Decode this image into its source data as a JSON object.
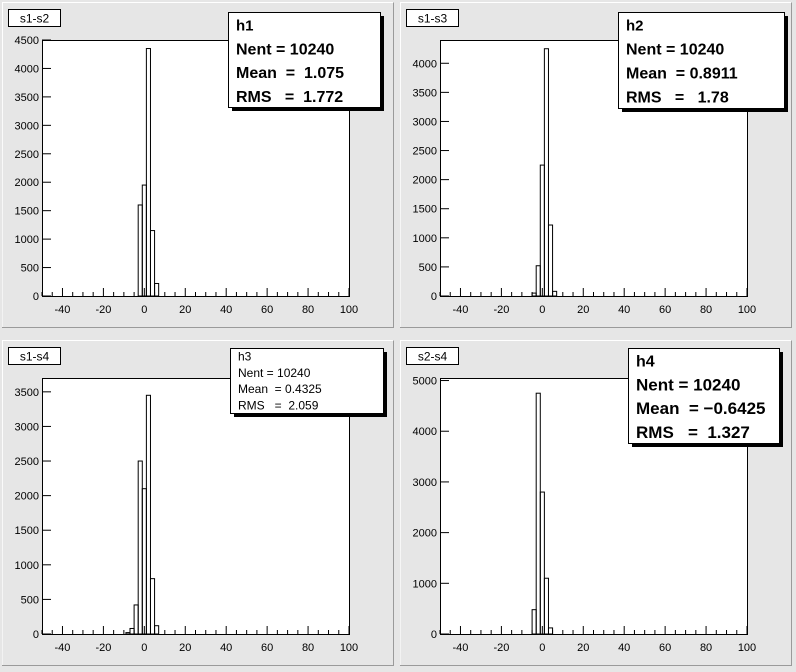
{
  "chart_data": [
    {
      "type": "histogram",
      "pad_title": "s1-s2",
      "stats": {
        "name": "h1",
        "entries_label": "Nent = 10240",
        "mean_label": "Mean  =  1.075",
        "rms_label": "RMS   =  1.772"
      },
      "xlim": [
        -50,
        100
      ],
      "ylim": [
        0,
        4500
      ],
      "x_ticks": [
        -40,
        -20,
        0,
        20,
        40,
        60,
        80,
        100
      ],
      "x_tick_labels": [
        "-40",
        "-20",
        "0",
        "20",
        "40",
        "60",
        "80",
        "100"
      ],
      "y_ticks": [
        0,
        500,
        1000,
        1500,
        2000,
        2500,
        3000,
        3500,
        4000,
        4500
      ],
      "y_tick_labels": [
        "0",
        "500",
        "1000",
        "1500",
        "2000",
        "2500",
        "3000",
        "3500",
        "4000",
        "4500"
      ],
      "bin_edges": [
        -3,
        -1,
        1,
        3,
        5,
        7
      ],
      "counts": [
        1600,
        1950,
        4350,
        1150,
        220
      ]
    },
    {
      "type": "histogram",
      "pad_title": "s1-s3",
      "stats": {
        "name": "h2",
        "entries_label": "Nent = 10240",
        "mean_label": "Mean  = 0.8911",
        "rms_label": "RMS   =   1.78"
      },
      "xlim": [
        -50,
        100
      ],
      "ylim": [
        0,
        4400
      ],
      "x_ticks": [
        -40,
        -20,
        0,
        20,
        40,
        60,
        80,
        100
      ],
      "x_tick_labels": [
        "-40",
        "-20",
        "0",
        "20",
        "40",
        "60",
        "80",
        "100"
      ],
      "y_ticks": [
        0,
        500,
        1000,
        1500,
        2000,
        2500,
        3000,
        3500,
        4000
      ],
      "y_tick_labels": [
        "0",
        "500",
        "1000",
        "1500",
        "2000",
        "2500",
        "3000",
        "3500",
        "4000"
      ],
      "bin_edges": [
        -5,
        -3,
        -1,
        1,
        3,
        5,
        7
      ],
      "counts": [
        50,
        520,
        2250,
        4250,
        1220,
        80
      ]
    },
    {
      "type": "histogram",
      "pad_title": "s1-s4",
      "stats": {
        "name": "h3",
        "entries_label": "Nent = 10240",
        "mean_label": "Mean  = 0.4325",
        "rms_label": "RMS   =  2.059"
      },
      "xlim": [
        -50,
        100
      ],
      "ylim": [
        0,
        3700
      ],
      "x_ticks": [
        -40,
        -20,
        0,
        20,
        40,
        60,
        80,
        100
      ],
      "x_tick_labels": [
        "-40",
        "-20",
        "0",
        "20",
        "40",
        "60",
        "80",
        "100"
      ],
      "y_ticks": [
        0,
        500,
        1000,
        1500,
        2000,
        2500,
        3000,
        3500
      ],
      "y_tick_labels": [
        "0",
        "500",
        "1000",
        "1500",
        "2000",
        "2500",
        "3000",
        "3500"
      ],
      "bin_edges": [
        -9,
        -7,
        -5,
        -3,
        -1,
        1,
        3,
        5,
        7
      ],
      "counts": [
        20,
        80,
        420,
        2500,
        2100,
        3450,
        800,
        120
      ]
    },
    {
      "type": "histogram",
      "pad_title": "s2-s4",
      "stats": {
        "name": "h4",
        "entries_label": "Nent = 10240",
        "mean_label": "Mean  = −0.6425",
        "rms_label": "RMS   =  1.327"
      },
      "xlim": [
        -50,
        100
      ],
      "ylim": [
        0,
        5050
      ],
      "x_ticks": [
        -40,
        -20,
        0,
        20,
        40,
        60,
        80,
        100
      ],
      "x_tick_labels": [
        "-40",
        "-20",
        "0",
        "20",
        "40",
        "60",
        "80",
        "100"
      ],
      "y_ticks": [
        0,
        1000,
        2000,
        3000,
        4000,
        5000
      ],
      "y_tick_labels": [
        "0",
        "1000",
        "2000",
        "3000",
        "4000",
        "5000"
      ],
      "bin_edges": [
        -5,
        -3,
        -1,
        1,
        3,
        5
      ],
      "counts": [
        480,
        4750,
        2800,
        1100,
        120
      ]
    }
  ]
}
